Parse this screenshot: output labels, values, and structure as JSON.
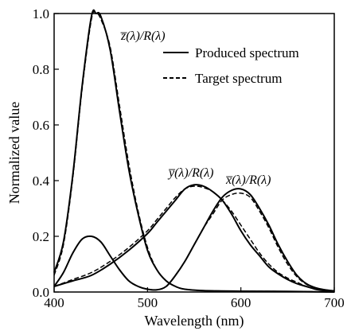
{
  "chart_data": {
    "type": "line",
    "xlabel": "Wavelength (nm)",
    "ylabel": "Normalized value",
    "xlim": [
      400,
      700
    ],
    "ylim": [
      0,
      1.0
    ],
    "x_ticks": [
      "400",
      "500",
      "600",
      "700"
    ],
    "y_ticks": [
      "0.0",
      "0.2",
      "0.4",
      "0.6",
      "0.8",
      "1.0"
    ],
    "grid": false,
    "legend_position": "top-right",
    "legend": [
      {
        "label": "Produced spectrum",
        "style": "solid"
      },
      {
        "label": "Target spectrum",
        "style": "dashed"
      }
    ],
    "annotations": [
      {
        "text": "z̅(λ)/R(λ)",
        "curve": "z"
      },
      {
        "text": "y̅(λ)/R(λ)",
        "curve": "y"
      },
      {
        "text": "x̅(λ)/R(λ)",
        "curve": "x"
      }
    ],
    "series": [
      {
        "curve": "z",
        "style": "solid",
        "points": [
          [
            400,
            0.07
          ],
          [
            410,
            0.18
          ],
          [
            420,
            0.42
          ],
          [
            430,
            0.74
          ],
          [
            440,
            0.99
          ],
          [
            445,
            1.0
          ],
          [
            450,
            0.99
          ],
          [
            460,
            0.87
          ],
          [
            470,
            0.65
          ],
          [
            480,
            0.44
          ],
          [
            490,
            0.28
          ],
          [
            500,
            0.15
          ],
          [
            510,
            0.08
          ],
          [
            520,
            0.04
          ],
          [
            530,
            0.02
          ],
          [
            540,
            0.01
          ],
          [
            560,
            0.005
          ],
          [
            600,
            0.003
          ],
          [
            650,
            0.002
          ],
          [
            700,
            0.0
          ]
        ]
      },
      {
        "curve": "z",
        "style": "dashed",
        "points": [
          [
            400,
            0.06
          ],
          [
            410,
            0.17
          ],
          [
            420,
            0.41
          ],
          [
            430,
            0.73
          ],
          [
            440,
            0.98
          ],
          [
            445,
            1.0
          ],
          [
            450,
            0.98
          ],
          [
            460,
            0.88
          ],
          [
            470,
            0.67
          ],
          [
            480,
            0.46
          ],
          [
            490,
            0.29
          ],
          [
            500,
            0.16
          ],
          [
            510,
            0.08
          ],
          [
            520,
            0.04
          ],
          [
            530,
            0.02
          ],
          [
            540,
            0.01
          ],
          [
            560,
            0.005
          ],
          [
            600,
            0.003
          ],
          [
            650,
            0.002
          ],
          [
            700,
            0.0
          ]
        ]
      },
      {
        "curve": "x",
        "style": "solid",
        "points": [
          [
            400,
            0.02
          ],
          [
            410,
            0.07
          ],
          [
            420,
            0.14
          ],
          [
            430,
            0.19
          ],
          [
            440,
            0.2
          ],
          [
            450,
            0.18
          ],
          [
            460,
            0.13
          ],
          [
            470,
            0.08
          ],
          [
            480,
            0.04
          ],
          [
            490,
            0.02
          ],
          [
            500,
            0.01
          ],
          [
            510,
            0.008
          ],
          [
            520,
            0.02
          ],
          [
            530,
            0.06
          ],
          [
            540,
            0.11
          ],
          [
            550,
            0.17
          ],
          [
            560,
            0.23
          ],
          [
            570,
            0.29
          ],
          [
            580,
            0.34
          ],
          [
            590,
            0.365
          ],
          [
            600,
            0.37
          ],
          [
            610,
            0.35
          ],
          [
            620,
            0.3
          ],
          [
            630,
            0.24
          ],
          [
            640,
            0.17
          ],
          [
            650,
            0.11
          ],
          [
            660,
            0.06
          ],
          [
            670,
            0.03
          ],
          [
            680,
            0.015
          ],
          [
            690,
            0.008
          ],
          [
            700,
            0.004
          ]
        ]
      },
      {
        "curve": "x",
        "style": "dashed",
        "points": [
          [
            400,
            0.02
          ],
          [
            410,
            0.07
          ],
          [
            420,
            0.14
          ],
          [
            430,
            0.19
          ],
          [
            440,
            0.2
          ],
          [
            450,
            0.18
          ],
          [
            460,
            0.13
          ],
          [
            470,
            0.08
          ],
          [
            480,
            0.04
          ],
          [
            490,
            0.02
          ],
          [
            500,
            0.01
          ],
          [
            510,
            0.008
          ],
          [
            520,
            0.02
          ],
          [
            530,
            0.06
          ],
          [
            540,
            0.11
          ],
          [
            550,
            0.17
          ],
          [
            560,
            0.23
          ],
          [
            570,
            0.28
          ],
          [
            580,
            0.33
          ],
          [
            590,
            0.35
          ],
          [
            600,
            0.355
          ],
          [
            610,
            0.34
          ],
          [
            620,
            0.29
          ],
          [
            630,
            0.23
          ],
          [
            640,
            0.16
          ],
          [
            650,
            0.1
          ],
          [
            660,
            0.055
          ],
          [
            670,
            0.028
          ],
          [
            680,
            0.014
          ],
          [
            690,
            0.008
          ],
          [
            700,
            0.004
          ]
        ]
      },
      {
        "curve": "y",
        "style": "solid",
        "points": [
          [
            400,
            0.02
          ],
          [
            420,
            0.04
          ],
          [
            440,
            0.06
          ],
          [
            460,
            0.1
          ],
          [
            480,
            0.15
          ],
          [
            500,
            0.21
          ],
          [
            510,
            0.25
          ],
          [
            520,
            0.29
          ],
          [
            530,
            0.33
          ],
          [
            540,
            0.37
          ],
          [
            550,
            0.385
          ],
          [
            560,
            0.38
          ],
          [
            570,
            0.36
          ],
          [
            580,
            0.33
          ],
          [
            590,
            0.28
          ],
          [
            600,
            0.22
          ],
          [
            610,
            0.17
          ],
          [
            620,
            0.13
          ],
          [
            630,
            0.09
          ],
          [
            640,
            0.065
          ],
          [
            650,
            0.045
          ],
          [
            660,
            0.03
          ],
          [
            670,
            0.02
          ],
          [
            680,
            0.01
          ],
          [
            690,
            0.005
          ],
          [
            700,
            0.003
          ]
        ]
      },
      {
        "curve": "y",
        "style": "dashed",
        "points": [
          [
            400,
            0.02
          ],
          [
            420,
            0.045
          ],
          [
            440,
            0.07
          ],
          [
            460,
            0.11
          ],
          [
            480,
            0.16
          ],
          [
            500,
            0.22
          ],
          [
            510,
            0.26
          ],
          [
            520,
            0.3
          ],
          [
            530,
            0.34
          ],
          [
            540,
            0.37
          ],
          [
            550,
            0.38
          ],
          [
            560,
            0.375
          ],
          [
            570,
            0.36
          ],
          [
            580,
            0.33
          ],
          [
            590,
            0.29
          ],
          [
            600,
            0.24
          ],
          [
            610,
            0.19
          ],
          [
            620,
            0.14
          ],
          [
            630,
            0.1
          ],
          [
            640,
            0.07
          ],
          [
            650,
            0.05
          ],
          [
            660,
            0.035
          ],
          [
            670,
            0.02
          ],
          [
            680,
            0.012
          ],
          [
            690,
            0.006
          ],
          [
            700,
            0.003
          ]
        ]
      }
    ]
  }
}
